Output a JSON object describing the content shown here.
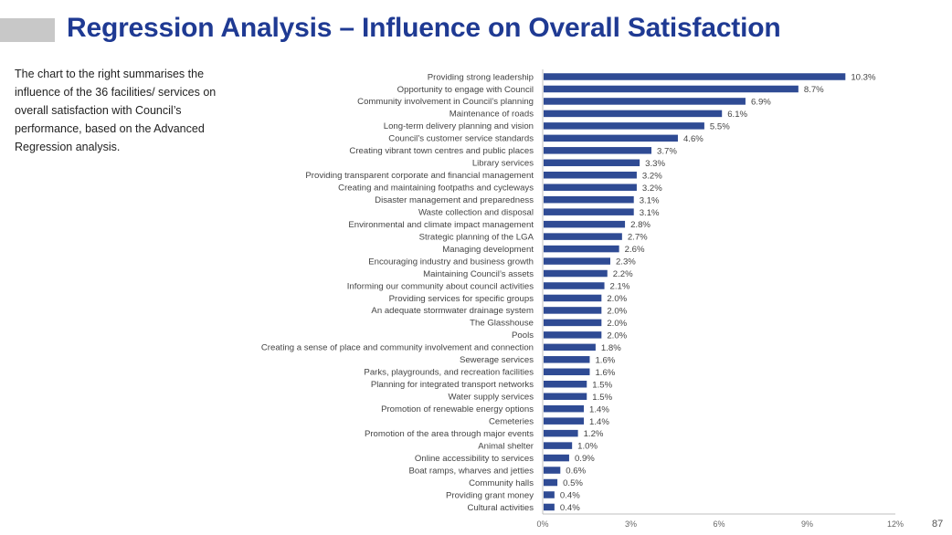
{
  "page": {
    "title": "Regression Analysis – Influence on Overall Satisfaction",
    "description": "The chart to the right summarises the influence of the 36 facilities/ services on overall satisfaction with Council’s performance, based on the Advanced Regression analysis.",
    "page_number": "87"
  },
  "colors": {
    "title": "#1f3a93",
    "bar": "#2f4b94",
    "accent_bar": "#c8c8c8"
  },
  "chart_data": {
    "type": "bar",
    "orientation": "horizontal",
    "title": "",
    "xlabel": "",
    "ylabel": "",
    "xlim": [
      0,
      12
    ],
    "x_ticks": [
      "0%",
      "3%",
      "6%",
      "9%",
      "12%"
    ],
    "grid": false,
    "legend": "none",
    "categories": [
      "Providing strong leadership",
      "Opportunity to engage with Council",
      "Community involvement in Council’s planning",
      "Maintenance of roads",
      "Long-term delivery planning and vision",
      "Council’s customer service standards",
      "Creating vibrant town centres and public places",
      "Library services",
      "Providing transparent corporate and financial management",
      "Creating and maintaining footpaths and cycleways",
      "Disaster management and preparedness",
      "Waste collection and disposal",
      "Environmental and climate impact management",
      "Strategic planning of the LGA",
      "Managing development",
      "Encouraging industry and business growth",
      "Maintaining Council’s assets",
      "Informing our community about council activities",
      "Providing services for specific groups",
      "An adequate stormwater drainage system",
      "The Glasshouse",
      "Pools",
      "Creating a sense of place and community involvement and connection",
      "Sewerage services",
      "Parks, playgrounds, and recreation facilities",
      "Planning for integrated transport networks",
      "Water supply services",
      "Promotion of renewable energy options",
      "Cemeteries",
      "Promotion of the area through major events",
      "Animal shelter",
      "Online accessibility to services",
      "Boat ramps, wharves and jetties",
      "Community halls",
      "Providing grant money",
      "Cultural activities"
    ],
    "values": [
      10.3,
      8.7,
      6.9,
      6.1,
      5.5,
      4.6,
      3.7,
      3.3,
      3.2,
      3.2,
      3.1,
      3.1,
      2.8,
      2.7,
      2.6,
      2.3,
      2.2,
      2.1,
      2.0,
      2.0,
      2.0,
      2.0,
      1.8,
      1.6,
      1.6,
      1.5,
      1.5,
      1.4,
      1.4,
      1.2,
      1.0,
      0.9,
      0.6,
      0.5,
      0.4,
      0.4
    ],
    "value_labels": [
      "10.3%",
      "8.7%",
      "6.9%",
      "6.1%",
      "5.5%",
      "4.6%",
      "3.7%",
      "3.3%",
      "3.2%",
      "3.2%",
      "3.1%",
      "3.1%",
      "2.8%",
      "2.7%",
      "2.6%",
      "2.3%",
      "2.2%",
      "2.1%",
      "2.0%",
      "2.0%",
      "2.0%",
      "2.0%",
      "1.8%",
      "1.6%",
      "1.6%",
      "1.5%",
      "1.5%",
      "1.4%",
      "1.4%",
      "1.2%",
      "1.0%",
      "0.9%",
      "0.6%",
      "0.5%",
      "0.4%",
      "0.4%"
    ]
  }
}
